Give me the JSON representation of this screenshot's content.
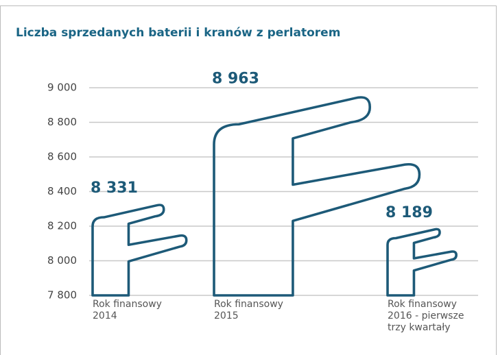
{
  "chart_data": {
    "type": "pictograph",
    "title": "Liczba sprzedanych baterii i kranów z perlatorem",
    "categories": [
      "Rok finansowy 2014",
      "Rok finansowy 2015",
      "Rok finansowy 2016 - pierwsze trzy kwartały"
    ],
    "values": [
      8331,
      8963,
      8189
    ],
    "value_labels": [
      "8 331",
      "8 963",
      "8 189"
    ],
    "color": "#1d5a78",
    "ylim": [
      7800,
      9000
    ],
    "yticks": [
      {
        "value": 7800,
        "label": "7 800"
      },
      {
        "value": 8000,
        "label": "8 000"
      },
      {
        "value": 8200,
        "label": "8 200"
      },
      {
        "value": 8400,
        "label": "8 400"
      },
      {
        "value": 8600,
        "label": "8 600"
      },
      {
        "value": 8800,
        "label": "8 800"
      },
      {
        "value": 9000,
        "label": "9 000"
      }
    ],
    "grid": true
  }
}
